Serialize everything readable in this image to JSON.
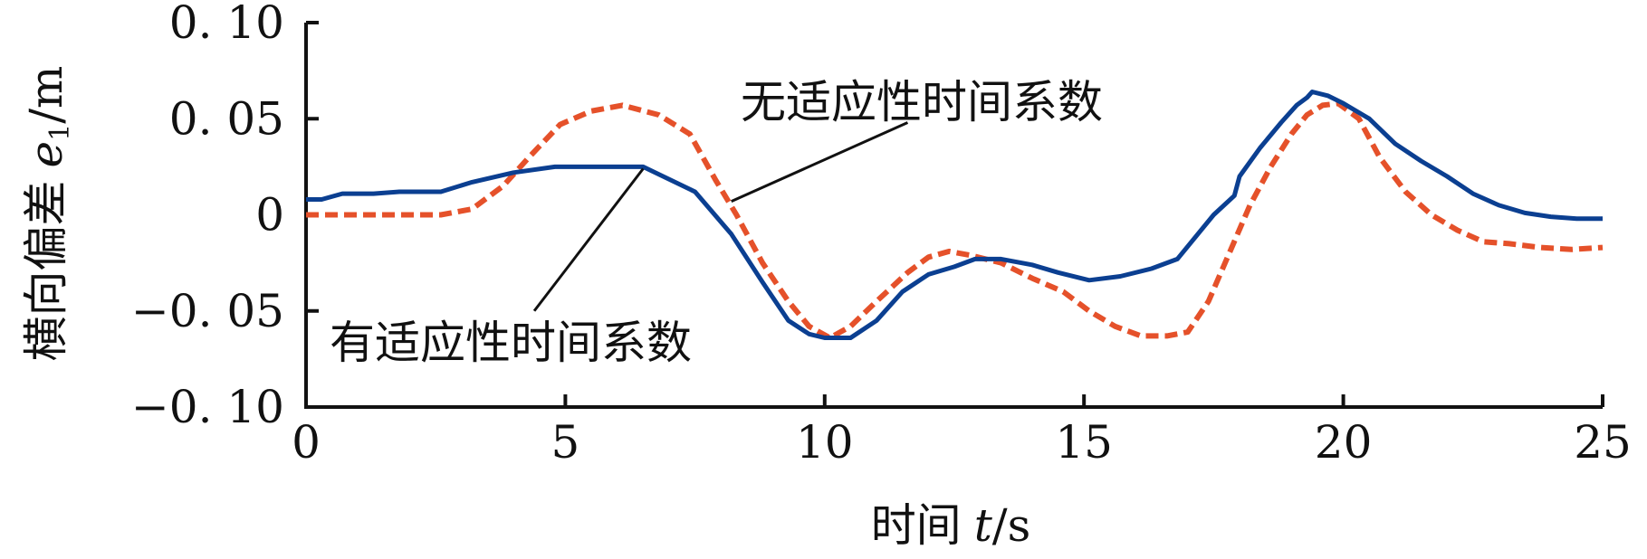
{
  "chart_data": {
    "type": "line",
    "xlim": [
      0,
      25
    ],
    "ylim": [
      -0.1,
      0.1
    ],
    "x_ticks": [
      0,
      5,
      10,
      15,
      20,
      25
    ],
    "x_tick_labels": [
      "0",
      "5",
      "10",
      "15",
      "20",
      "25"
    ],
    "y_ticks": [
      0.1,
      0.05,
      0,
      -0.05,
      -0.1
    ],
    "y_tick_labels": [
      "0. 10",
      "0. 05",
      "0",
      "−0. 05",
      "−0. 10"
    ],
    "xlabel": {
      "text": "时间",
      "var": "t",
      "unit": "s"
    },
    "ylabel": {
      "text": "横向偏差",
      "var": "e",
      "sub": "1",
      "unit": "m"
    },
    "grid": false,
    "series": [
      {
        "name": "有适应性时间系数",
        "color": "#0b3f91",
        "style": "solid",
        "x": [
          0,
          0.3,
          0.7,
          1.3,
          1.8,
          2.6,
          3.2,
          4.0,
          4.8,
          5.6,
          6.5,
          7.5,
          8.2,
          8.8,
          9.3,
          9.7,
          10.0,
          10.5,
          11.0,
          11.5,
          12.0,
          12.5,
          12.9,
          13.4,
          14.0,
          14.5,
          15.1,
          15.7,
          16.3,
          16.8,
          17.5,
          17.9,
          18.0,
          18.4,
          18.8,
          19.1,
          19.3,
          19.4,
          19.7,
          20.0,
          20.5,
          21.0,
          21.5,
          22.0,
          22.5,
          23.0,
          23.5,
          24.0,
          24.5,
          25.0
        ],
        "y": [
          0.008,
          0.008,
          0.011,
          0.011,
          0.012,
          0.012,
          0.017,
          0.022,
          0.025,
          0.025,
          0.025,
          0.012,
          -0.01,
          -0.035,
          -0.055,
          -0.062,
          -0.064,
          -0.064,
          -0.055,
          -0.04,
          -0.031,
          -0.027,
          -0.023,
          -0.023,
          -0.026,
          -0.03,
          -0.034,
          -0.032,
          -0.028,
          -0.023,
          0.0,
          0.01,
          0.02,
          0.035,
          0.048,
          0.057,
          0.061,
          0.064,
          0.062,
          0.058,
          0.05,
          0.037,
          0.028,
          0.02,
          0.011,
          0.005,
          0.001,
          -0.001,
          -0.002,
          -0.002
        ]
      },
      {
        "name": "无适应性时间系数",
        "color": "#e5512a",
        "style": "dashed",
        "x": [
          0,
          0.5,
          1.5,
          2.6,
          3.2,
          3.8,
          4.3,
          4.9,
          5.5,
          6.1,
          6.8,
          7.4,
          7.9,
          8.3,
          8.8,
          9.3,
          9.7,
          10.1,
          10.5,
          11.0,
          11.6,
          12.0,
          12.4,
          12.8,
          13.4,
          14.0,
          14.6,
          15.1,
          15.6,
          16.1,
          16.6,
          17.0,
          17.4,
          17.8,
          18.2,
          18.6,
          19.0,
          19.3,
          19.6,
          19.9,
          20.3,
          20.7,
          21.2,
          21.7,
          22.2,
          22.7,
          23.2,
          23.8,
          24.4,
          25.0
        ],
        "y": [
          0.0,
          0.0,
          0.0,
          0.0,
          0.003,
          0.015,
          0.03,
          0.047,
          0.054,
          0.057,
          0.052,
          0.042,
          0.018,
          0.0,
          -0.025,
          -0.045,
          -0.058,
          -0.064,
          -0.058,
          -0.045,
          -0.03,
          -0.022,
          -0.019,
          -0.021,
          -0.025,
          -0.033,
          -0.04,
          -0.05,
          -0.058,
          -0.063,
          -0.063,
          -0.061,
          -0.045,
          -0.02,
          0.005,
          0.025,
          0.042,
          0.052,
          0.057,
          0.058,
          0.05,
          0.03,
          0.012,
          0.0,
          -0.008,
          -0.014,
          -0.015,
          -0.017,
          -0.018,
          -0.017
        ]
      }
    ],
    "annotations": [
      {
        "text": "无适应性时间系数",
        "series_index": 1
      },
      {
        "text": "有适应性时间系数",
        "series_index": 0
      }
    ]
  }
}
